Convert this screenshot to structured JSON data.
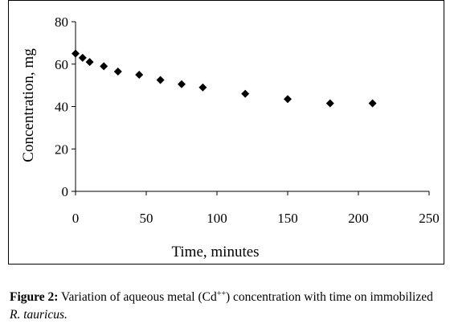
{
  "chart_data": {
    "type": "scatter",
    "xlabel": "Time, minutes",
    "ylabel": "Concentration, mg",
    "xlim": [
      0,
      250
    ],
    "ylim": [
      0,
      80
    ],
    "xticks": [
      0,
      50,
      100,
      150,
      200,
      250
    ],
    "yticks": [
      0,
      20,
      40,
      60,
      80
    ],
    "grid": false,
    "marker": "diamond",
    "marker_color": "#000000",
    "series": [
      {
        "x": [
          0,
          5,
          10,
          20,
          30,
          45,
          60,
          75,
          90,
          120,
          150,
          180,
          210
        ],
        "y": [
          65,
          63,
          61,
          59,
          56.5,
          55,
          52.5,
          50.5,
          49,
          46,
          43.5,
          41.5,
          41.5
        ]
      }
    ]
  },
  "caption": {
    "label": "Figure 2:",
    "text_before": " Variation of aqueous metal (Cd",
    "superscript": "++",
    "text_after": ") concentration with time on immobilized ",
    "species": "R. tauricus."
  }
}
